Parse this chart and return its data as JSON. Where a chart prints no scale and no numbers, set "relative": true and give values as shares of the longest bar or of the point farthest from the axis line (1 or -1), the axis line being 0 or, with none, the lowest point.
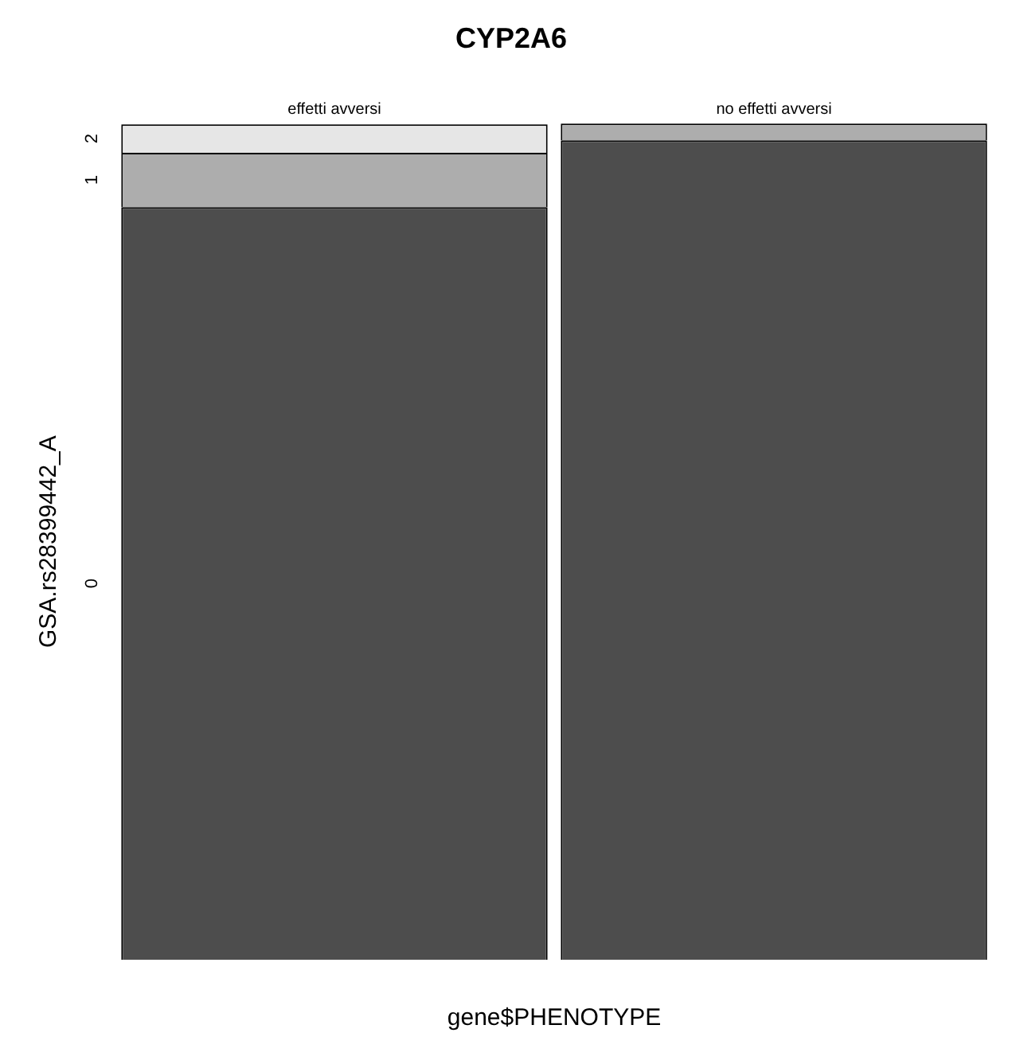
{
  "chart_data": {
    "type": "bar",
    "title": "CYP2A6",
    "xlabel": "gene$PHENOTYPE",
    "ylabel": "GSA.rs28399442_A",
    "categories": [
      "effetti avversi",
      "no effetti avversi"
    ],
    "stacked": true,
    "relative": true,
    "series": [
      {
        "name": "0",
        "color": "#4d4d4d",
        "values": [
          0.9,
          0.98
        ]
      },
      {
        "name": "1",
        "color": "#adadad",
        "values": [
          0.065,
          0.02
        ]
      },
      {
        "name": "2",
        "color": "#e6e6e6",
        "values": [
          0.034,
          0
        ]
      }
    ]
  }
}
